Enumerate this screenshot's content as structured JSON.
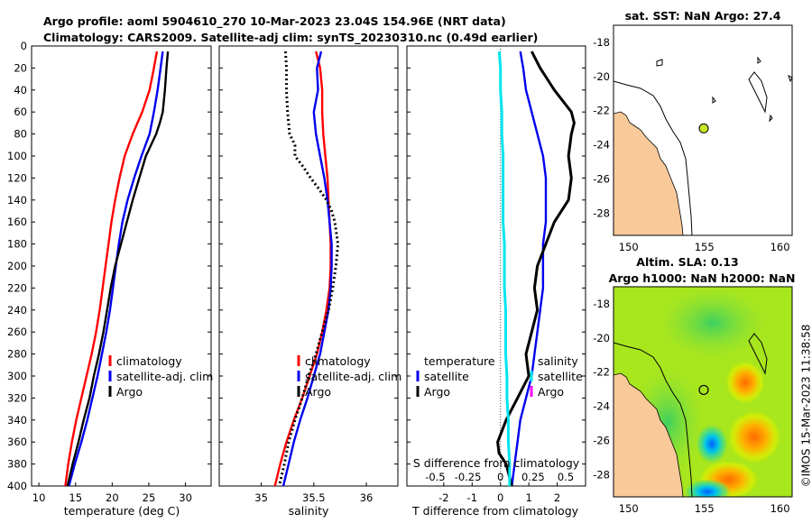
{
  "title_line1": "Argo profile: aoml 5904610_270 10-Mar-2023 23.04S 154.96E (NRT data)",
  "title_line2": "Climatology: CARS2009. Satellite-adj clim: synTS_20230310.nc (0.49d earlier)",
  "watermark": "©IMOS 15-Mar-2023 11:38:58",
  "colors": {
    "climatology": "#ff0000",
    "satellite": "#0000ee",
    "argo": "#000000",
    "cyan": "#00e5ee",
    "magenta": "#ff00ff",
    "land": "#f9c99a"
  },
  "chart_data": [
    {
      "type": "line",
      "id": "temperature",
      "xlabel": "temperature (deg C)",
      "ylabel": "",
      "xlim": [
        9,
        33.5
      ],
      "ylim": [
        400,
        0
      ],
      "xticks": [
        "10",
        "15",
        "20",
        "25",
        "30"
      ],
      "yticks": [
        "0",
        "20",
        "40",
        "60",
        "80",
        "100",
        "120",
        "140",
        "160",
        "180",
        "200",
        "220",
        "240",
        "260",
        "280",
        "300",
        "320",
        "340",
        "360",
        "380",
        "400"
      ],
      "legend": [
        "climatology",
        "satellite-adj. clim",
        "Argo"
      ],
      "series": [
        {
          "name": "climatology",
          "depth": [
            5,
            20,
            40,
            60,
            80,
            100,
            120,
            140,
            160,
            180,
            200,
            220,
            240,
            260,
            280,
            300,
            320,
            340,
            360,
            380,
            400
          ],
          "values": [
            26.1,
            25.7,
            25.1,
            24.1,
            22.8,
            21.7,
            21.0,
            20.4,
            19.9,
            19.5,
            19.1,
            18.7,
            18.3,
            17.8,
            17.2,
            16.5,
            15.8,
            15.1,
            14.5,
            14.0,
            13.6
          ]
        },
        {
          "name": "satellite-adj. clim",
          "depth": [
            5,
            20,
            40,
            60,
            80,
            100,
            120,
            140,
            160,
            180,
            200,
            220,
            240,
            260,
            280,
            300,
            320,
            340,
            360,
            380,
            400
          ],
          "values": [
            26.9,
            26.6,
            26.2,
            25.7,
            25.1,
            24.0,
            23.0,
            22.1,
            21.4,
            20.9,
            20.5,
            20.1,
            19.7,
            19.2,
            18.6,
            18.0,
            17.3,
            16.6,
            15.8,
            14.9,
            14.1
          ]
        },
        {
          "name": "Argo",
          "depth": [
            5,
            20,
            40,
            60,
            70,
            80,
            100,
            120,
            140,
            160,
            180,
            200,
            220,
            240,
            260,
            280,
            300,
            320,
            340,
            360,
            380,
            400
          ],
          "values": [
            27.6,
            27.4,
            27.2,
            26.9,
            26.5,
            26.0,
            24.6,
            23.7,
            22.8,
            22.0,
            21.2,
            20.4,
            19.8,
            19.3,
            18.8,
            18.2,
            17.5,
            16.9,
            16.1,
            15.4,
            14.6,
            13.9
          ]
        }
      ]
    },
    {
      "type": "line",
      "id": "salinity",
      "xlabel": "salinity",
      "xlim": [
        34.6,
        36.3
      ],
      "ylim": [
        400,
        0
      ],
      "xticks": [
        "35",
        "35.5",
        "36"
      ],
      "legend": [
        "climatology",
        "satellite-adj. clim",
        "Argo"
      ],
      "series": [
        {
          "name": "climatology",
          "depth": [
            5,
            20,
            40,
            60,
            80,
            100,
            120,
            140,
            160,
            180,
            200,
            220,
            240,
            260,
            280,
            300,
            320,
            340,
            360,
            380,
            400
          ],
          "values": [
            35.52,
            35.56,
            35.58,
            35.58,
            35.59,
            35.61,
            35.63,
            35.64,
            35.65,
            35.66,
            35.66,
            35.65,
            35.62,
            35.58,
            35.53,
            35.46,
            35.39,
            35.31,
            35.24,
            35.18,
            35.13
          ]
        },
        {
          "name": "satellite-adj. clim",
          "depth": [
            5,
            20,
            40,
            60,
            80,
            100,
            120,
            140,
            160,
            180,
            200,
            220,
            240,
            260,
            280,
            300,
            320,
            340,
            360,
            380,
            400
          ],
          "values": [
            35.57,
            35.53,
            35.54,
            35.5,
            35.52,
            35.56,
            35.6,
            35.63,
            35.65,
            35.67,
            35.67,
            35.66,
            35.64,
            35.6,
            35.56,
            35.5,
            35.44,
            35.37,
            35.31,
            35.26,
            35.21
          ]
        },
        {
          "name": "Argo",
          "depth": [
            5,
            20,
            40,
            60,
            80,
            90,
            100,
            110,
            120,
            130,
            140,
            150,
            160,
            180,
            200,
            220,
            240,
            260,
            280,
            300,
            320,
            340,
            360,
            380,
            400
          ],
          "values": [
            35.23,
            35.24,
            35.24,
            35.25,
            35.27,
            35.32,
            35.32,
            35.4,
            35.47,
            35.55,
            35.62,
            35.67,
            35.7,
            35.73,
            35.71,
            35.68,
            35.64,
            35.58,
            35.52,
            35.45,
            35.39,
            35.32,
            35.26,
            35.22,
            35.17
          ]
        }
      ]
    },
    {
      "type": "line",
      "id": "difference",
      "xlabel": "T difference from climatology",
      "xlabel_top": "S difference from climatology",
      "xlim": [
        -3.3,
        3.0
      ],
      "ylim": [
        400,
        0
      ],
      "xticks": [
        "-2",
        "-1",
        "0",
        "1",
        "2"
      ],
      "xticks_top": [
        "-0.5",
        "-0.25",
        "0",
        "0.25",
        "0.5"
      ],
      "legend": [
        "temperature",
        "satellite",
        "Argo",
        "salinity",
        "satellite",
        "Argo"
      ],
      "series": [
        {
          "name": "T satellite",
          "depth": [
            5,
            20,
            40,
            60,
            80,
            100,
            120,
            140,
            160,
            180,
            200,
            220,
            240,
            260,
            280,
            300,
            320,
            340,
            360,
            380,
            400
          ],
          "values": [
            0.7,
            0.8,
            0.9,
            1.1,
            1.3,
            1.5,
            1.6,
            1.6,
            1.6,
            1.5,
            1.5,
            1.5,
            1.4,
            1.3,
            1.2,
            1.1,
            0.9,
            0.7,
            0.6,
            0.5,
            0.4
          ]
        },
        {
          "name": "T Argo",
          "depth": [
            5,
            20,
            40,
            60,
            70,
            80,
            100,
            120,
            140,
            160,
            180,
            200,
            220,
            240,
            260,
            280,
            300,
            320,
            340,
            360,
            370,
            380,
            400
          ],
          "values": [
            1.1,
            1.4,
            1.9,
            2.5,
            2.6,
            2.5,
            2.4,
            2.5,
            2.4,
            1.9,
            1.6,
            1.3,
            1.2,
            1.3,
            1.1,
            0.9,
            1.0,
            0.6,
            0.2,
            -0.1,
            -0.05,
            0.2,
            0.4
          ]
        },
        {
          "name": "S difference",
          "depth": [
            5,
            20,
            40,
            60,
            80,
            100,
            120,
            140,
            160,
            180,
            200,
            220,
            240,
            260,
            280,
            300,
            320,
            340,
            360,
            380,
            400
          ],
          "values": [
            -0.01,
            0.0,
            0.0,
            0.01,
            0.01,
            0.02,
            0.02,
            0.02,
            0.02,
            0.03,
            0.03,
            0.03,
            0.04,
            0.04,
            0.04,
            0.05,
            0.05,
            0.06,
            0.06,
            0.07,
            0.07
          ]
        }
      ]
    },
    {
      "type": "map",
      "id": "sst_map",
      "title": "sat. SST: NaN Argo: 27.4",
      "xlim": [
        149,
        160.8
      ],
      "ylim": [
        -29.3,
        -17
      ],
      "xticks": [
        "150",
        "155",
        "160"
      ],
      "yticks": [
        "-18",
        "-20",
        "-22",
        "-24",
        "-26",
        "-28"
      ],
      "argo_position": {
        "lon": 154.96,
        "lat": -23.04
      }
    },
    {
      "type": "heatmap",
      "id": "sla_map",
      "title_line1": "Altim. SLA: 0.13",
      "title_line2": "Argo h1000: NaN h2000: NaN",
      "xlim": [
        149,
        160.8
      ],
      "ylim": [
        -29.3,
        -17
      ],
      "xticks": [
        "150",
        "155",
        "160"
      ],
      "yticks": [
        "-18",
        "-20",
        "-22",
        "-24",
        "-26",
        "-28"
      ],
      "argo_position": {
        "lon": 154.96,
        "lat": -23.04
      },
      "features": [
        {
          "kind": "high",
          "lon": 158.3,
          "lat": -25.8
        },
        {
          "kind": "high",
          "lon": 157.7,
          "lat": -22.6
        },
        {
          "kind": "high",
          "lon": 156.6,
          "lat": -28.3
        },
        {
          "kind": "low",
          "lon": 155.5,
          "lat": -26.2
        },
        {
          "kind": "low",
          "lon": 155.2,
          "lat": -29.0
        }
      ]
    }
  ]
}
